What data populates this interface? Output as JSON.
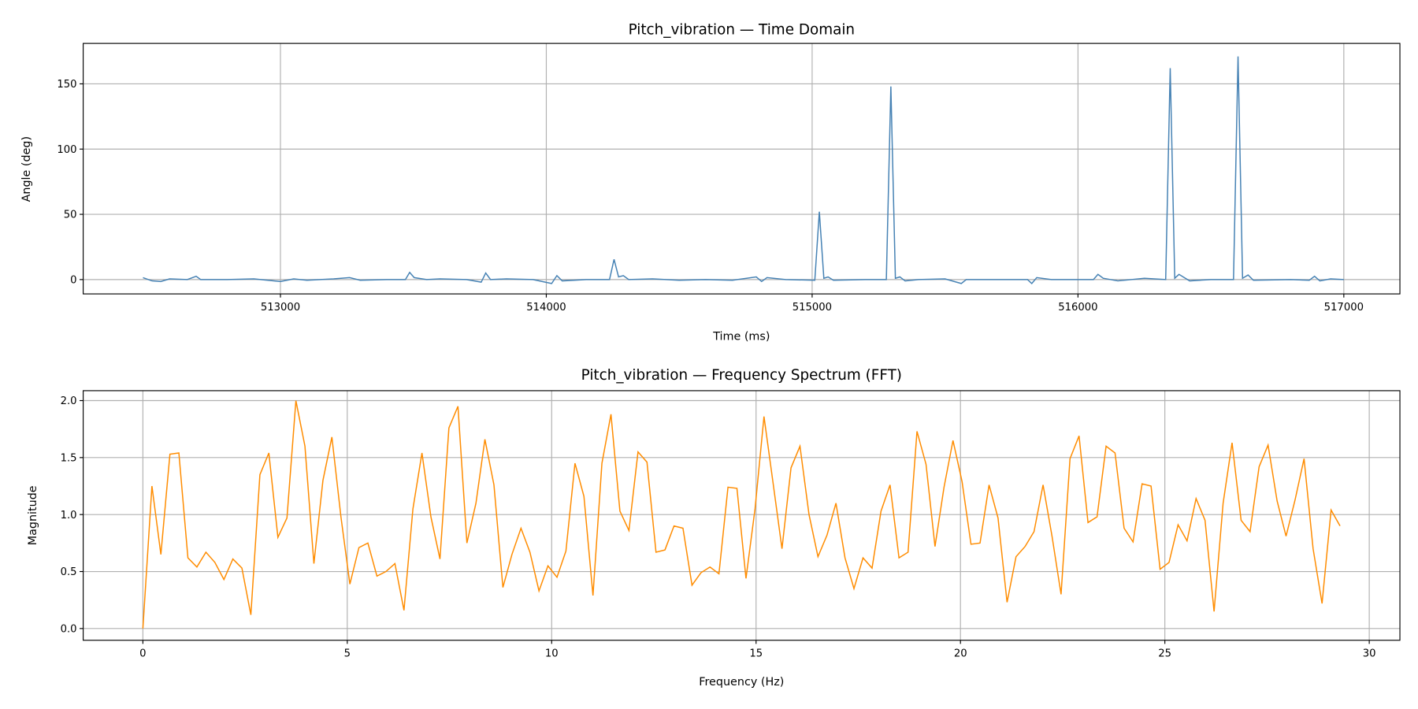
{
  "chart_data": [
    {
      "type": "line",
      "title": "Pitch_vibration — Time Domain",
      "xlabel": "Time (ms)",
      "ylabel": "Angle (deg)",
      "xlim": [
        512258,
        517211
      ],
      "ylim": [
        -11,
        181
      ],
      "x_ticks": [
        513000,
        514000,
        515000,
        516000,
        517000
      ],
      "y_ticks": [
        0,
        50,
        100,
        150
      ],
      "grid": true,
      "color": "#4682b4",
      "points": [
        [
          512483,
          1.5
        ],
        [
          512517,
          -1
        ],
        [
          512550,
          -1.5
        ],
        [
          512583,
          0.5
        ],
        [
          512650,
          0
        ],
        [
          512683,
          2.5
        ],
        [
          512700,
          0
        ],
        [
          512800,
          0
        ],
        [
          512900,
          0.5
        ],
        [
          513000,
          -1.5
        ],
        [
          513050,
          0.5
        ],
        [
          513100,
          -0.5
        ],
        [
          513200,
          0.5
        ],
        [
          513260,
          1.5
        ],
        [
          513300,
          -0.5
        ],
        [
          513400,
          0
        ],
        [
          513470,
          0
        ],
        [
          513486,
          5.5
        ],
        [
          513503,
          1.5
        ],
        [
          513550,
          0
        ],
        [
          513600,
          0.5
        ],
        [
          513700,
          0
        ],
        [
          513755,
          -2
        ],
        [
          513772,
          5
        ],
        [
          513790,
          0
        ],
        [
          513850,
          0.5
        ],
        [
          513950,
          0
        ],
        [
          514020,
          -3
        ],
        [
          514040,
          3
        ],
        [
          514060,
          -1
        ],
        [
          514150,
          0
        ],
        [
          514238,
          0
        ],
        [
          514255,
          15.5
        ],
        [
          514272,
          2
        ],
        [
          514290,
          3
        ],
        [
          514310,
          0
        ],
        [
          514400,
          0.5
        ],
        [
          514500,
          -0.5
        ],
        [
          514600,
          0
        ],
        [
          514700,
          -0.5
        ],
        [
          514790,
          2
        ],
        [
          514810,
          -1.5
        ],
        [
          514830,
          1.5
        ],
        [
          514900,
          0
        ],
        [
          515010,
          -0.5
        ],
        [
          515027,
          52
        ],
        [
          515044,
          1
        ],
        [
          515060,
          2
        ],
        [
          515080,
          -0.5
        ],
        [
          515200,
          0
        ],
        [
          515279,
          0
        ],
        [
          515296,
          148
        ],
        [
          515313,
          1
        ],
        [
          515330,
          2
        ],
        [
          515350,
          -1
        ],
        [
          515400,
          0
        ],
        [
          515500,
          0.5
        ],
        [
          515561,
          -3
        ],
        [
          515580,
          0
        ],
        [
          515700,
          0
        ],
        [
          515810,
          0
        ],
        [
          515826,
          -3
        ],
        [
          515845,
          1.5
        ],
        [
          515900,
          0
        ],
        [
          516000,
          0
        ],
        [
          516058,
          0
        ],
        [
          516075,
          4
        ],
        [
          516095,
          1
        ],
        [
          516150,
          -1
        ],
        [
          516250,
          1
        ],
        [
          516330,
          0
        ],
        [
          516347,
          162
        ],
        [
          516364,
          1
        ],
        [
          516380,
          4
        ],
        [
          516420,
          -1
        ],
        [
          516500,
          0
        ],
        [
          516585,
          0
        ],
        [
          516602,
          171
        ],
        [
          516619,
          1
        ],
        [
          516640,
          3.5
        ],
        [
          516660,
          -0.5
        ],
        [
          516800,
          0
        ],
        [
          516870,
          -0.5
        ],
        [
          516890,
          2.5
        ],
        [
          516910,
          -1
        ],
        [
          516950,
          0.5
        ],
        [
          517000,
          0
        ]
      ]
    },
    {
      "type": "line",
      "title": "Pitch_vibration — Frequency Spectrum (FFT)",
      "xlabel": "Frequency (Hz)",
      "ylabel": "Magnitude",
      "xlim": [
        -1.46,
        30.75
      ],
      "ylim": [
        -0.103,
        2.087
      ],
      "x_ticks": [
        0,
        5,
        10,
        15,
        20,
        25,
        30
      ],
      "y_ticks": [
        "0.0",
        "0.5",
        "1.0",
        "1.5",
        "2.0"
      ],
      "grid": true,
      "color": "#ff8c00",
      "x_step": 0.2202,
      "values": [
        0.0,
        1.25,
        0.65,
        1.53,
        1.54,
        0.62,
        0.54,
        0.67,
        0.58,
        0.43,
        0.61,
        0.53,
        0.12,
        1.35,
        1.54,
        0.8,
        0.97,
        2.0,
        1.6,
        0.57,
        1.3,
        1.68,
        0.98,
        0.39,
        0.71,
        0.75,
        0.46,
        0.5,
        0.57,
        0.16,
        1.05,
        1.54,
        0.98,
        0.61,
        1.76,
        1.95,
        0.75,
        1.1,
        1.66,
        1.26,
        0.36,
        0.65,
        0.88,
        0.67,
        0.33,
        0.55,
        0.45,
        0.68,
        1.45,
        1.16,
        0.29,
        1.45,
        1.88,
        1.03,
        0.86,
        1.55,
        1.46,
        0.67,
        0.69,
        0.9,
        0.88,
        0.38,
        0.49,
        0.54,
        0.48,
        1.24,
        1.23,
        0.44,
        1.05,
        1.86,
        1.28,
        0.7,
        1.41,
        1.6,
        1.0,
        0.63,
        0.82,
        1.1,
        0.62,
        0.35,
        0.62,
        0.53,
        1.03,
        1.26,
        0.62,
        0.67,
        1.73,
        1.44,
        0.72,
        1.24,
        1.65,
        1.29,
        0.74,
        0.75,
        1.26,
        0.97,
        0.23,
        0.63,
        0.72,
        0.85,
        1.26,
        0.81,
        0.3,
        1.49,
        1.69,
        0.93,
        0.98,
        1.6,
        1.54,
        0.88,
        0.76,
        1.27,
        1.25,
        0.52,
        0.58,
        0.91,
        0.77,
        1.14,
        0.95,
        0.15,
        1.1,
        1.63,
        0.95,
        0.85,
        1.42,
        1.61,
        1.12,
        0.81,
        1.13,
        1.49,
        0.7,
        0.22,
        1.04,
        0.9
      ]
    }
  ]
}
